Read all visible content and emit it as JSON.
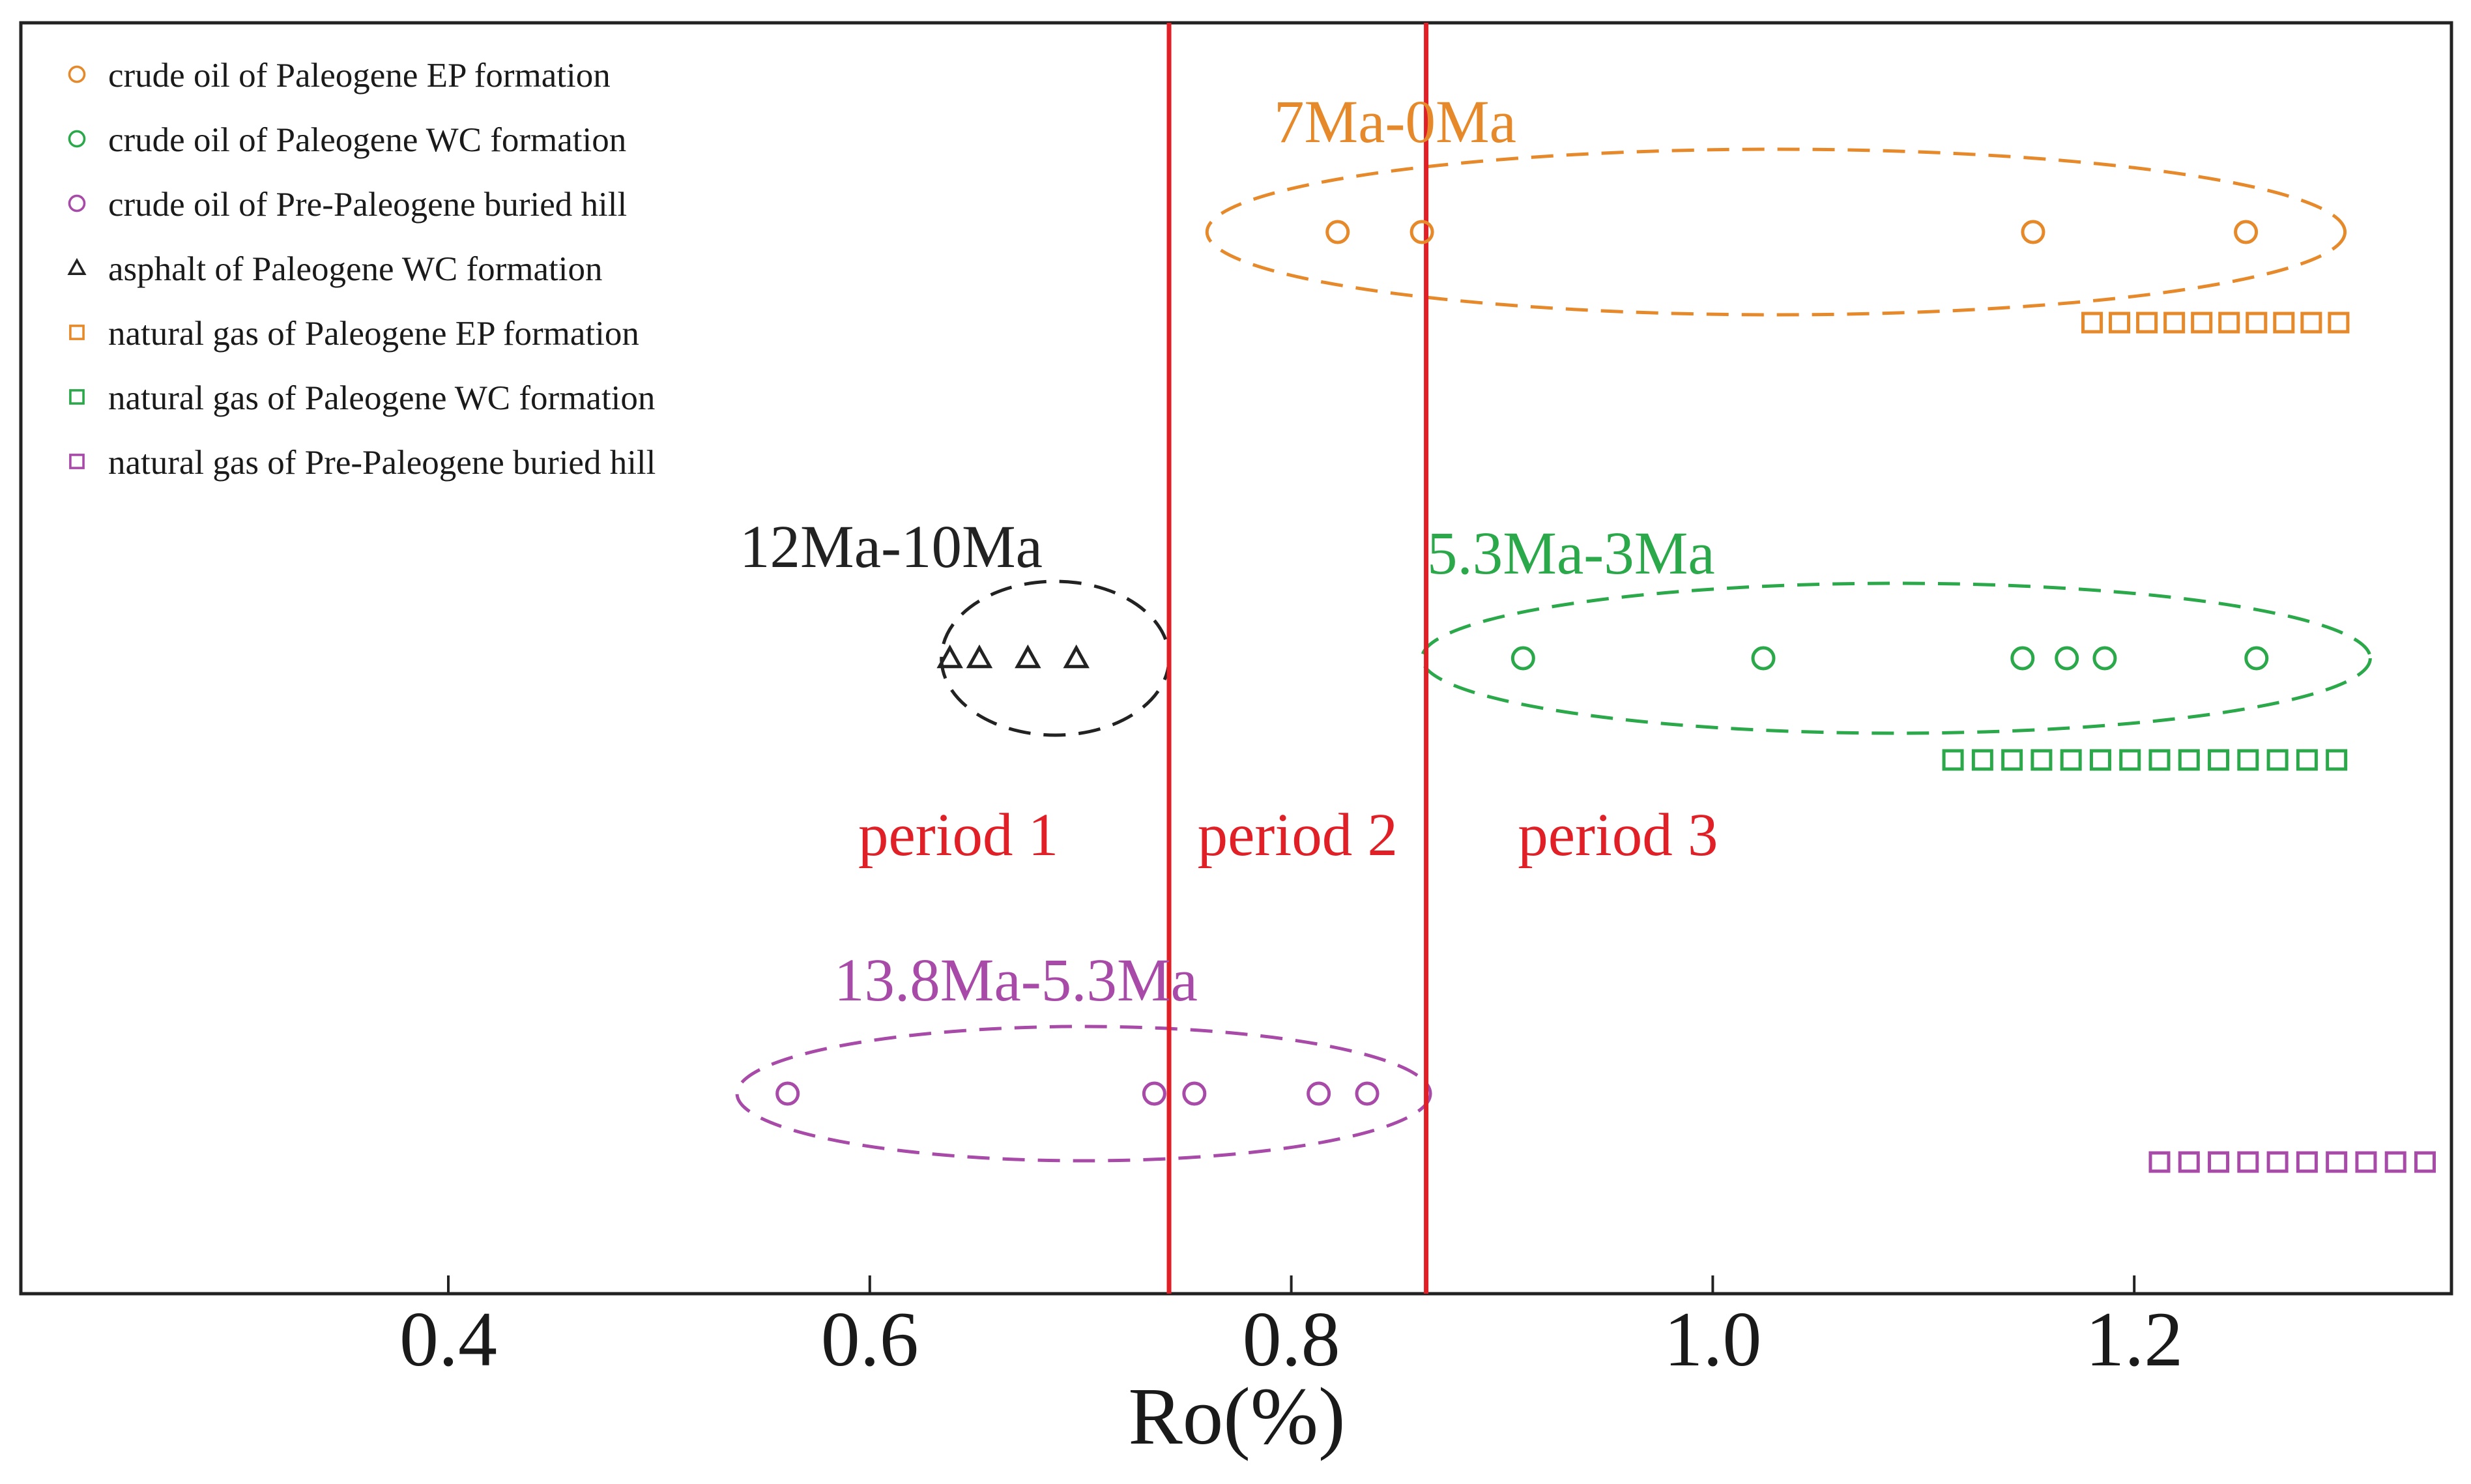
{
  "colors": {
    "orange": "#e6892a",
    "green": "#2aa84a",
    "purple": "#a84aa8",
    "black": "#222222",
    "red": "#e01f26",
    "frame": "#222222"
  },
  "chart_data": {
    "type": "scatter",
    "xlabel": "Ro(%)",
    "ylabel": "",
    "xlim": [
      0.2,
      1.35
    ],
    "xticks": [
      0.4,
      0.6,
      0.8,
      1.0,
      1.2
    ],
    "xtick_labels": [
      "0.4",
      "0.6",
      "0.8",
      "1.0",
      "1.2"
    ],
    "grid": false,
    "legend_position": "top-left",
    "legend": [
      {
        "label": "crude oil of Paleogene EP formation",
        "marker": "circle",
        "color": "orange"
      },
      {
        "label": "crude oil of Paleogene WC formation",
        "marker": "circle",
        "color": "green"
      },
      {
        "label": "crude oil of Pre-Paleogene buried hill",
        "marker": "circle",
        "color": "purple"
      },
      {
        "label": "asphalt of Paleogene WC formation",
        "marker": "triangle",
        "color": "black"
      },
      {
        "label": "natural gas of Paleogene EP formation",
        "marker": "square",
        "color": "orange"
      },
      {
        "label": "natural gas of Paleogene WC formation",
        "marker": "square",
        "color": "green"
      },
      {
        "label": "natural gas of Pre-Paleogene buried hill",
        "marker": "square",
        "color": "purple"
      }
    ],
    "series": [
      {
        "name": "crude oil of Paleogene EP formation",
        "marker": "circle",
        "color": "orange",
        "row": 1,
        "x": [
          0.822,
          0.862,
          1.152,
          1.253
        ]
      },
      {
        "name": "crude oil of Paleogene WC formation",
        "marker": "circle",
        "color": "green",
        "row": 3,
        "x": [
          0.91,
          1.024,
          1.147,
          1.168,
          1.186,
          1.258
        ]
      },
      {
        "name": "crude oil of Pre-Paleogene buried hill",
        "marker": "circle",
        "color": "purple",
        "row": 6,
        "x": [
          0.561,
          0.735,
          0.754,
          0.813,
          0.836
        ]
      },
      {
        "name": "asphalt of Paleogene WC formation",
        "marker": "triangle",
        "color": "black",
        "row": 3,
        "x": [
          0.638,
          0.652,
          0.675,
          0.698
        ]
      },
      {
        "name": "natural gas of Paleogene EP formation",
        "marker": "square",
        "color": "orange",
        "row": 2,
        "x": [
          1.18,
          1.193,
          1.206,
          1.219,
          1.232,
          1.245,
          1.258,
          1.271,
          1.284,
          1.297
        ]
      },
      {
        "name": "natural gas of Paleogene WC formation",
        "marker": "square",
        "color": "green",
        "row": 4,
        "x": [
          1.114,
          1.128,
          1.142,
          1.156,
          1.17,
          1.184,
          1.198,
          1.212,
          1.226,
          1.24,
          1.254,
          1.268,
          1.282,
          1.296
        ]
      },
      {
        "name": "natural gas of Pre-Paleogene buried hill",
        "marker": "square",
        "color": "purple",
        "row": 7,
        "x": [
          1.212,
          1.226,
          1.24,
          1.254,
          1.268,
          1.282,
          1.296,
          1.31,
          1.324,
          1.338
        ]
      }
    ],
    "period_boundaries": [
      0.742,
      0.864
    ],
    "periods": [
      {
        "label": "period 1",
        "x_center": 0.642
      },
      {
        "label": "period 2",
        "x_center": 0.803
      },
      {
        "label": "period 3",
        "x_center": 0.955
      }
    ],
    "groupings": [
      {
        "label": "7Ma-0Ma",
        "color": "orange",
        "row": 1,
        "x_range": [
          0.76,
          1.3
        ]
      },
      {
        "label": "12Ma-10Ma",
        "color": "black",
        "row": 3,
        "x_range": [
          0.634,
          0.742
        ]
      },
      {
        "label": "5.3Ma-3Ma",
        "color": "green",
        "row": 3,
        "x_range": [
          0.862,
          1.312
        ]
      },
      {
        "label": "13.8Ma-5.3Ma",
        "color": "purple",
        "row": 6,
        "x_range": [
          0.537,
          0.866
        ]
      }
    ]
  }
}
